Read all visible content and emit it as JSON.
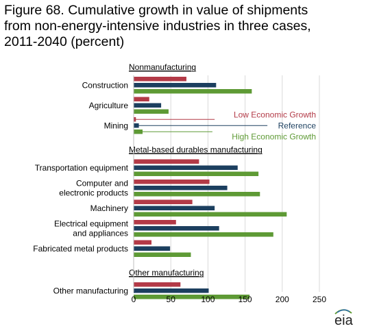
{
  "figure": {
    "title_line1": "Figure 68. Cumulative growth in value of shipments",
    "title_line2": "from non-energy-intensive industries in three cases,",
    "title_line3": "2011-2040 (percent)"
  },
  "logo": {
    "text": "eia",
    "icon": "eia-logo-icon"
  },
  "chart_data": {
    "type": "bar",
    "orientation": "horizontal",
    "title": "Figure 68. Cumulative growth in value of shipments from non-energy-intensive industries in three cases, 2011-2040 (percent)",
    "xlabel": "",
    "ylabel": "",
    "xlim": [
      0,
      250
    ],
    "x_ticks": [
      0,
      50,
      100,
      150,
      200,
      250
    ],
    "grid": "vertical",
    "colors": {
      "low": "#b33a47",
      "reference": "#1c3f5f",
      "high": "#5e9a35"
    },
    "series": [
      {
        "name": "Low Economic Growth",
        "key": "low"
      },
      {
        "name": "Reference",
        "key": "reference"
      },
      {
        "name": "High Economic Growth",
        "key": "high"
      }
    ],
    "groups": [
      {
        "label": "Nonmanufacturing",
        "categories": [
          {
            "lines": [
              "Construction"
            ],
            "values": [
              71,
              111,
              159
            ]
          },
          {
            "lines": [
              "Agriculture"
            ],
            "values": [
              21,
              37,
              47
            ]
          },
          {
            "lines": [
              "Mining"
            ],
            "values": [
              3,
              7,
              12
            ]
          }
        ]
      },
      {
        "label": "Metal-based durables manufacturing",
        "categories": [
          {
            "lines": [
              "Transportation equipment"
            ],
            "values": [
              88,
              140,
              168
            ]
          },
          {
            "lines": [
              "Computer and",
              "electronic  products"
            ],
            "values": [
              102,
              126,
              170
            ]
          },
          {
            "lines": [
              "Machinery"
            ],
            "values": [
              79,
              109,
              206
            ]
          },
          {
            "lines": [
              "Electrical equipment",
              "and appliances"
            ],
            "values": [
              57,
              115,
              188
            ]
          },
          {
            "lines": [
              "Fabricated metal products"
            ],
            "values": [
              24,
              49,
              77
            ]
          }
        ]
      },
      {
        "label": "Other manufacturing",
        "categories": [
          {
            "lines": [
              "Other manufacturing"
            ],
            "values": [
              63,
              101,
              156
            ]
          }
        ]
      }
    ],
    "annotations": [
      {
        "text": "Low Economic Growth",
        "series": "low"
      },
      {
        "text": "Reference",
        "series": "reference"
      },
      {
        "text": "High Economic Growth",
        "series": "high"
      }
    ]
  }
}
